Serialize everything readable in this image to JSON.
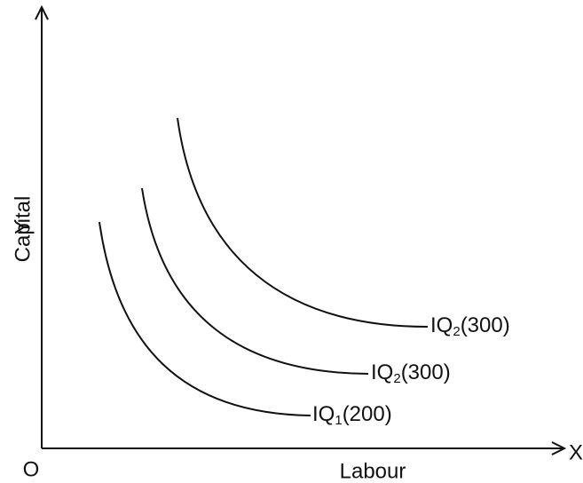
{
  "axes": {
    "origin": "O",
    "x_symbol": "X",
    "x_label": "Labour",
    "y_symbol": "Y",
    "y_label": "Capital"
  },
  "curves": [
    {
      "name": "IQ",
      "subscript": "1",
      "quantity": "(200)"
    },
    {
      "name": "IQ",
      "subscript": "2",
      "quantity": "(300)"
    },
    {
      "name": "IQ",
      "subscript": "2",
      "quantity": "(300)"
    }
  ]
}
